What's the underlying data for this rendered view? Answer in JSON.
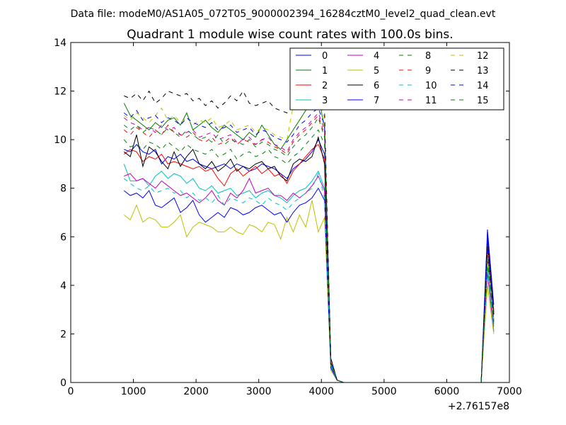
{
  "figure": {
    "suptitle": "Data file: modeM0/AS1A05_072T05_9000002394_16284cztM0_level2_quad_clean.evt",
    "background": "#ffffff"
  },
  "chart_data": {
    "type": "line",
    "title": "Quadrant 1 module wise count rates with 100.0s bins.",
    "xlabel": "",
    "ylabel": "",
    "x_offset_label": "+2.76157e8",
    "xlim": [
      0,
      7000
    ],
    "ylim": [
      0,
      14
    ],
    "xticks": [
      "0",
      "1000",
      "2000",
      "3000",
      "4000",
      "5000",
      "6000",
      "7000"
    ],
    "yticks": [
      "0",
      "2",
      "4",
      "6",
      "8",
      "10",
      "12",
      "14"
    ],
    "grid": false,
    "legend": {
      "placement": "top-right",
      "ncol": 4
    },
    "x_active": [
      850,
      950,
      1050,
      1150,
      1250,
      1350,
      1450,
      1550,
      1650,
      1750,
      1850,
      1950,
      2050,
      2150,
      2250,
      2350,
      2450,
      2550,
      2650,
      2750,
      2850,
      2950,
      3050,
      3150,
      3250,
      3350,
      3450,
      3550,
      3650,
      3750,
      3850,
      3950,
      4050,
      4150,
      4250
    ],
    "x_gap": [
      4350,
      4450,
      4550,
      4650,
      4750,
      4850,
      4950,
      5050,
      5150,
      5250,
      5350,
      5450,
      5550,
      5650,
      5750,
      5850,
      5950,
      6050,
      6150,
      6250,
      6350,
      6450,
      6550
    ],
    "x_tail": [
      6650,
      6750
    ],
    "gap_value": 0,
    "series": [
      {
        "name": "0",
        "color": "#0000ff",
        "dash": false,
        "values": [
          9.6,
          9.5,
          9.8,
          9.5,
          9.4,
          9.6,
          9.0,
          9.3,
          9.2,
          9.4,
          9.1,
          9.2,
          9.0,
          8.9,
          8.8,
          8.9,
          9.0,
          8.8,
          9.0,
          8.9,
          8.7,
          8.8,
          9.0,
          8.9,
          8.8,
          8.6,
          8.4,
          8.8,
          9.0,
          9.2,
          9.5,
          10.0,
          9.4,
          1.0,
          0.1
        ],
        "tail": [
          5.5,
          2.5
        ]
      },
      {
        "name": "1",
        "color": "#008000",
        "dash": false,
        "values": [
          11.5,
          11.0,
          10.8,
          10.6,
          10.4,
          10.7,
          10.5,
          10.8,
          10.9,
          10.6,
          11.1,
          10.4,
          10.6,
          10.8,
          10.5,
          10.3,
          10.6,
          10.4,
          10.2,
          10.0,
          10.3,
          10.1,
          10.6,
          10.2,
          9.8,
          9.6,
          10.0,
          10.4,
          10.8,
          11.2,
          11.6,
          11.8,
          10.5,
          0.9,
          0.1
        ],
        "tail": [
          5.2,
          2.6
        ]
      },
      {
        "name": "2",
        "color": "#ff0000",
        "dash": false,
        "values": [
          9.4,
          9.6,
          9.5,
          9.1,
          9.3,
          9.2,
          9.4,
          9.0,
          9.1,
          9.0,
          8.9,
          8.8,
          8.9,
          8.7,
          8.8,
          8.4,
          8.1,
          8.6,
          8.8,
          8.5,
          8.7,
          8.9,
          8.6,
          8.8,
          8.5,
          8.6,
          8.2,
          8.7,
          9.0,
          9.3,
          9.6,
          9.8,
          9.2,
          0.8,
          0.1
        ],
        "tail": [
          5.8,
          2.9
        ]
      },
      {
        "name": "3",
        "color": "#00bfbf",
        "dash": false,
        "values": [
          9.0,
          8.3,
          8.3,
          8.4,
          8.1,
          8.5,
          8.7,
          8.4,
          8.6,
          8.5,
          8.2,
          8.4,
          8.0,
          7.9,
          8.1,
          7.8,
          7.9,
          8.0,
          7.7,
          7.8,
          7.9,
          7.6,
          7.8,
          7.9,
          7.7,
          7.6,
          7.4,
          7.7,
          7.9,
          8.0,
          8.3,
          8.7,
          8.0,
          0.7,
          0.1
        ],
        "tail": [
          4.8,
          2.3
        ]
      },
      {
        "name": "4",
        "color": "#bf00bf",
        "dash": false,
        "values": [
          8.5,
          8.6,
          8.3,
          8.4,
          8.2,
          8.0,
          8.3,
          8.1,
          7.9,
          7.7,
          7.8,
          7.6,
          7.4,
          7.6,
          7.9,
          7.5,
          7.3,
          7.8,
          7.6,
          7.9,
          8.4,
          7.8,
          7.9,
          8.0,
          7.7,
          7.7,
          7.5,
          7.8,
          7.6,
          7.8,
          8.1,
          8.5,
          7.9,
          0.6,
          0.1
        ],
        "tail": [
          4.5,
          2.1
        ]
      },
      {
        "name": "5",
        "color": "#bfbf00",
        "dash": false,
        "values": [
          6.9,
          6.7,
          7.3,
          6.6,
          6.8,
          6.7,
          6.4,
          6.4,
          6.6,
          6.9,
          6.0,
          6.4,
          6.6,
          6.5,
          6.4,
          6.2,
          6.2,
          6.4,
          6.2,
          6.1,
          6.5,
          6.4,
          6.2,
          6.6,
          6.5,
          5.9,
          6.8,
          6.2,
          6.9,
          6.4,
          7.5,
          6.2,
          6.8,
          0.5,
          0.1
        ],
        "tail": [
          4.0,
          2.0
        ]
      },
      {
        "name": "6",
        "color": "#000000",
        "dash": false,
        "values": [
          9.5,
          9.3,
          10.2,
          8.9,
          9.7,
          9.5,
          9.1,
          8.8,
          9.5,
          8.9,
          9.3,
          9.6,
          9.0,
          8.8,
          9.1,
          8.7,
          8.9,
          9.2,
          8.7,
          8.9,
          8.8,
          9.0,
          9.1,
          8.8,
          8.9,
          8.5,
          8.3,
          9.0,
          9.2,
          9.1,
          9.3,
          10.1,
          9.0,
          0.8,
          0.1
        ],
        "tail": [
          6.1,
          2.8
        ]
      },
      {
        "name": "7",
        "color": "#0000ff",
        "dash": false,
        "values": [
          7.9,
          7.7,
          7.8,
          7.6,
          7.9,
          7.3,
          7.2,
          7.4,
          7.6,
          7.0,
          7.2,
          7.5,
          6.9,
          6.6,
          6.8,
          7.0,
          6.8,
          7.2,
          7.1,
          6.9,
          7.0,
          7.2,
          7.3,
          7.1,
          6.9,
          7.0,
          6.6,
          7.0,
          7.3,
          7.4,
          7.6,
          8.0,
          7.5,
          0.6,
          0.1
        ],
        "tail": [
          6.3,
          3.2
        ]
      },
      {
        "name": "8",
        "color": "#008000",
        "dash": true,
        "values": [
          10.0,
          9.7,
          9.8,
          9.6,
          9.9,
          9.8,
          9.6,
          9.9,
          9.7,
          9.5,
          9.8,
          9.6,
          9.5,
          9.4,
          9.6,
          9.3,
          9.4,
          9.6,
          9.2,
          9.4,
          9.5,
          9.3,
          9.4,
          9.6,
          9.3,
          9.2,
          9.0,
          9.3,
          9.5,
          9.8,
          10.1,
          10.4,
          9.8,
          0.8,
          0.1
        ],
        "tail": [
          5.9,
          2.7
        ]
      },
      {
        "name": "9",
        "color": "#ff0000",
        "dash": true,
        "values": [
          10.4,
          10.2,
          10.5,
          10.3,
          10.1,
          10.4,
          10.2,
          10.6,
          10.3,
          10.2,
          10.1,
          10.3,
          10.0,
          9.9,
          10.1,
          9.8,
          9.9,
          10.1,
          9.8,
          10.0,
          9.9,
          9.8,
          10.0,
          9.9,
          9.7,
          9.6,
          9.4,
          9.9,
          10.2,
          10.4,
          10.7,
          11.0,
          10.2,
          0.9,
          0.1
        ],
        "tail": [
          5.7,
          3.0
        ]
      },
      {
        "name": "10",
        "color": "#00bfbf",
        "dash": true,
        "values": [
          8.4,
          8.2,
          8.0,
          7.9,
          8.1,
          7.8,
          7.9,
          8.0,
          7.8,
          7.9,
          7.6,
          7.8,
          7.5,
          7.6,
          7.4,
          7.7,
          7.3,
          7.6,
          7.5,
          7.4,
          7.6,
          7.5,
          7.3,
          7.6,
          7.4,
          7.3,
          7.1,
          7.4,
          7.6,
          7.8,
          8.0,
          8.6,
          7.6,
          0.7,
          0.1
        ],
        "tail": [
          4.6,
          2.2
        ]
      },
      {
        "name": "11",
        "color": "#bf00bf",
        "dash": true,
        "values": [
          10.9,
          10.7,
          10.6,
          10.4,
          10.5,
          10.3,
          10.6,
          10.4,
          10.5,
          10.2,
          10.3,
          10.4,
          10.1,
          10.2,
          10.3,
          10.0,
          10.1,
          10.2,
          9.9,
          10.0,
          10.1,
          9.8,
          10.0,
          10.1,
          9.8,
          9.7,
          9.5,
          10.0,
          10.3,
          10.5,
          10.8,
          11.1,
          10.4,
          0.9,
          0.1
        ],
        "tail": [
          5.4,
          2.4
        ]
      },
      {
        "name": "12",
        "color": "#bfbf00",
        "dash": true,
        "values": [
          11.0,
          10.8,
          11.1,
          10.9,
          10.7,
          11.0,
          11.3,
          10.8,
          11.0,
          10.7,
          10.9,
          10.6,
          10.8,
          10.7,
          10.9,
          10.5,
          10.6,
          10.8,
          10.4,
          10.5,
          10.6,
          10.3,
          10.5,
          10.4,
          10.2,
          10.1,
          10.0,
          11.4,
          11.7,
          11.8,
          12.0,
          11.6,
          10.9,
          0.9,
          0.1
        ],
        "tail": [
          5.3,
          2.6
        ]
      },
      {
        "name": "13",
        "color": "#000000",
        "dash": true,
        "values": [
          11.8,
          11.7,
          11.9,
          11.6,
          12.0,
          11.5,
          11.7,
          12.0,
          11.9,
          11.8,
          11.9,
          11.6,
          11.7,
          11.4,
          11.6,
          11.3,
          11.5,
          11.8,
          11.6,
          12.0,
          11.5,
          11.4,
          11.5,
          11.6,
          11.3,
          11.2,
          11.1,
          11.4,
          11.7,
          11.9,
          12.1,
          11.9,
          11.2,
          1.0,
          0.1
        ],
        "tail": [
          5.6,
          2.8
        ]
      },
      {
        "name": "14",
        "color": "#0000ff",
        "dash": true,
        "values": [
          11.1,
          10.9,
          11.2,
          10.8,
          10.9,
          11.0,
          10.7,
          10.9,
          10.8,
          10.6,
          10.9,
          10.7,
          10.6,
          10.5,
          10.7,
          10.4,
          10.5,
          10.6,
          10.3,
          10.4,
          10.5,
          10.2,
          10.4,
          10.3,
          10.1,
          10.0,
          9.9,
          10.2,
          10.6,
          10.8,
          11.1,
          11.3,
          10.6,
          0.9,
          0.1
        ],
        "tail": [
          5.9,
          2.9
        ]
      },
      {
        "name": "15",
        "color": "#008000",
        "dash": true,
        "values": [
          10.6,
          10.4,
          10.6,
          10.3,
          10.5,
          10.4,
          10.2,
          10.5,
          10.3,
          10.1,
          10.4,
          10.2,
          10.0,
          10.1,
          9.9,
          10.2,
          9.8,
          10.0,
          9.9,
          9.8,
          10.0,
          9.7,
          9.9,
          9.8,
          9.6,
          9.5,
          9.3,
          9.7,
          10.0,
          10.2,
          10.5,
          10.9,
          10.1,
          0.8,
          0.1
        ],
        "tail": [
          5.0,
          2.5
        ]
      }
    ]
  }
}
